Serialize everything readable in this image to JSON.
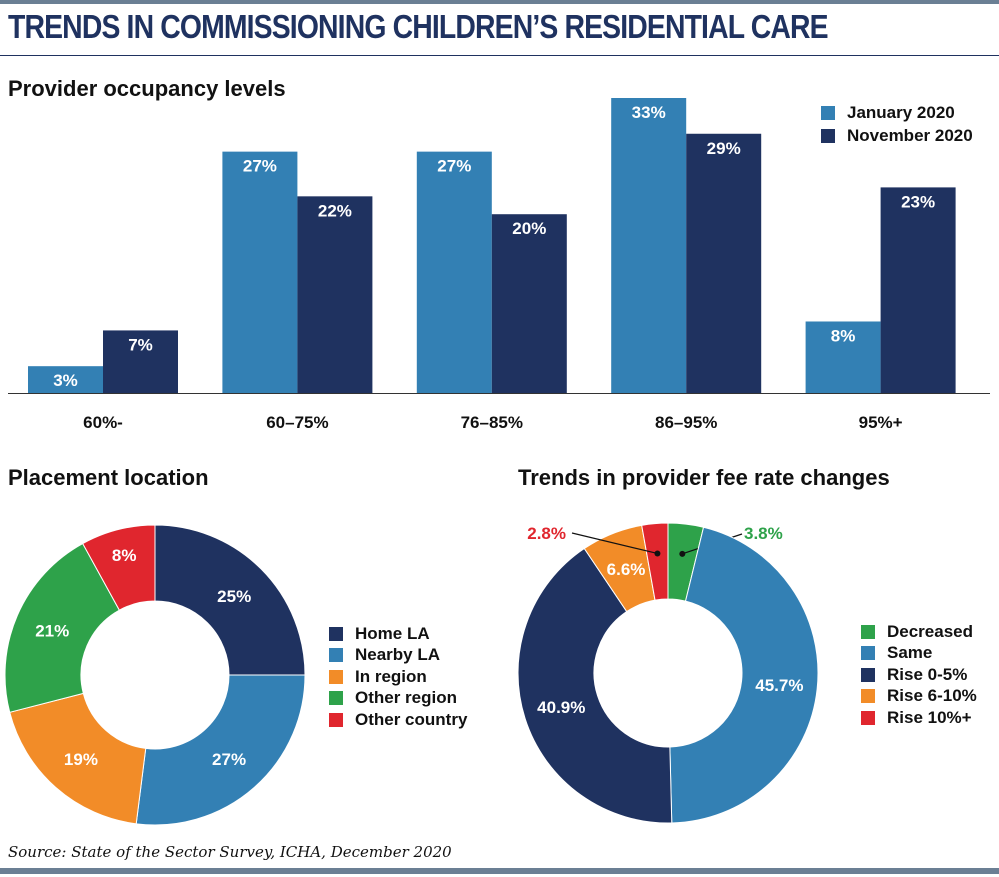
{
  "title": "TRENDS IN COMMISSIONING CHILDREN’S RESIDENTIAL CARE",
  "source": "Source: State of the Sector Survey, ICHA, December 2020",
  "colors": {
    "light_blue": "#3380b4",
    "dark_navy": "#1f3260",
    "orange": "#f28c28",
    "green": "#2ea24a",
    "red": "#e0262e",
    "rule_grey": "#6b7f94",
    "highlight_red": "#e0262e",
    "highlight_green": "#2ea24a"
  },
  "chart_data": [
    {
      "type": "bar",
      "title": "Provider occupancy levels",
      "categories": [
        "60%-",
        "60–75%",
        "76–85%",
        "86–95%",
        "95%+"
      ],
      "series": [
        {
          "name": "January 2020",
          "values": [
            3,
            27,
            27,
            33,
            8
          ],
          "labels": [
            "3%",
            "27%",
            "27%",
            "33%",
            "8%"
          ],
          "color": "#3380b4"
        },
        {
          "name": "November 2020",
          "values": [
            7,
            22,
            20,
            29,
            23
          ],
          "labels": [
            "7%",
            "22%",
            "20%",
            "29%",
            "23%"
          ],
          "color": "#1f3260"
        }
      ],
      "ylim": [
        0,
        33
      ],
      "grid": false,
      "legend_position": "top-right"
    },
    {
      "type": "pie",
      "subtype": "donut",
      "title": "Placement location",
      "slices": [
        {
          "name": "Home LA",
          "value": 25,
          "label": "25%",
          "color": "#1f3260"
        },
        {
          "name": "Nearby LA",
          "value": 27,
          "label": "27%",
          "color": "#3380b4"
        },
        {
          "name": "In region",
          "value": 19,
          "label": "19%",
          "color": "#f28c28"
        },
        {
          "name": "Other region",
          "value": 21,
          "label": "21%",
          "color": "#2ea24a"
        },
        {
          "name": "Other country",
          "value": 8,
          "label": "8%",
          "color": "#e0262e"
        }
      ],
      "legend_position": "right"
    },
    {
      "type": "pie",
      "subtype": "donut",
      "title": "Trends in provider fee rate changes",
      "slices": [
        {
          "name": "Decreased",
          "value": 3.8,
          "label": "3.8%",
          "color": "#2ea24a"
        },
        {
          "name": "Same",
          "value": 45.7,
          "label": "45.7%",
          "color": "#3380b4"
        },
        {
          "name": "Rise 0-5%",
          "value": 40.9,
          "label": "40.9%",
          "color": "#1f3260"
        },
        {
          "name": "Rise 6-10%",
          "value": 6.6,
          "label": "6.6%",
          "color": "#f28c28"
        },
        {
          "name": "Rise 10%+",
          "value": 2.8,
          "label": "2.8%",
          "color": "#e0262e"
        }
      ],
      "legend_position": "right"
    }
  ]
}
